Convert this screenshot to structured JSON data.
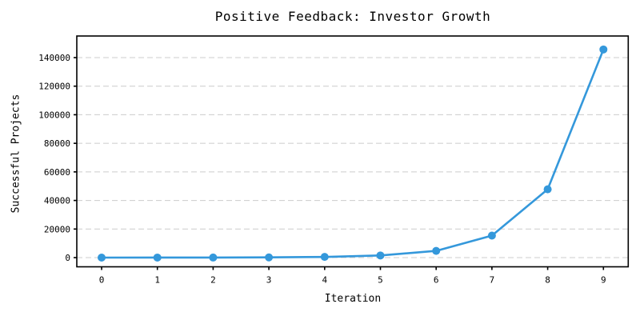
{
  "figure": {
    "background_color": "#ffffff"
  },
  "chart_data": {
    "type": "line",
    "title": "Positive Feedback: Investor Growth",
    "xlabel": "Iteration",
    "ylabel": "Successful Projects",
    "series": [
      {
        "name": "Successful Projects",
        "x": [
          0,
          1,
          2,
          3,
          4,
          5,
          6,
          7,
          8,
          9
        ],
        "values": [
          5,
          16,
          50,
          155,
          480,
          1500,
          4700,
          15400,
          47800,
          145700
        ]
      }
    ],
    "xticks": [
      0,
      1,
      2,
      3,
      4,
      5,
      6,
      7,
      8,
      9
    ],
    "yticks": [
      0,
      20000,
      40000,
      60000,
      80000,
      100000,
      120000,
      140000
    ],
    "xlim": [
      -0.445,
      9.445
    ],
    "ylim": [
      -6440,
      155120
    ],
    "grid": "horizontal",
    "grid_style": "dashed",
    "legend_position": "none",
    "marker": "circle",
    "colors": {
      "line": "#3498db",
      "marker": "#3498db",
      "grid": "#cccccc",
      "axis": "#000000",
      "text": "#000000"
    }
  }
}
